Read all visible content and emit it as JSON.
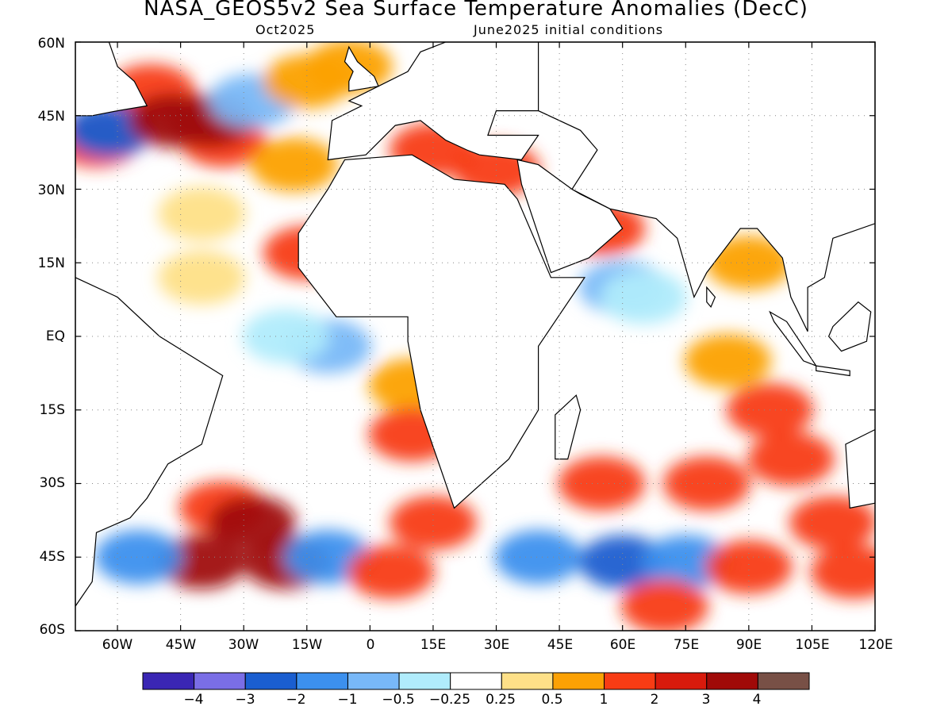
{
  "title": "NASA_GEOS5v2 Sea Surface Temperature Anomalies (DecC)",
  "subtitle_left": "Oct2025",
  "subtitle_right": "June2025 initial conditions",
  "axes": {
    "lat_ticks": [
      "60N",
      "45N",
      "30N",
      "15N",
      "EQ",
      "15S",
      "30S",
      "45S",
      "60S"
    ],
    "lon_ticks": [
      "60W",
      "45W",
      "30W",
      "15W",
      "0",
      "15E",
      "30E",
      "45E",
      "60E",
      "75E",
      "90E",
      "105E",
      "120E"
    ]
  },
  "colorbar": {
    "colors": [
      "#3a26b4",
      "#7a6ee6",
      "#1a5ed0",
      "#3c90ee",
      "#78b8f8",
      "#b0ecfc",
      "#ffffff",
      "#fee088",
      "#fca104",
      "#f83c14",
      "#d81a0c",
      "#a00a08",
      "#785046"
    ],
    "labels": [
      "−4",
      "−3",
      "−2",
      "−1",
      "−0.5",
      "−0.25",
      "0.25",
      "0.5",
      "1",
      "2",
      "3",
      "4"
    ]
  },
  "chart_data": {
    "type": "heatmap",
    "variable": "Sea Surface Temperature Anomalies (DecC)",
    "lon_range": [
      -70,
      120
    ],
    "lat_range": [
      -60,
      60
    ],
    "grid": true,
    "levels": [
      -4,
      -3,
      -2,
      -1,
      -0.5,
      -0.25,
      0.25,
      0.5,
      1,
      2,
      3,
      4
    ],
    "anomaly_regions": [
      {
        "lon": -52,
        "lat": 50,
        "value": 1.5
      },
      {
        "lon": -35,
        "lat": 40,
        "value": 1.5
      },
      {
        "lon": -65,
        "lat": 40,
        "value": 1.5
      },
      {
        "lon": -62,
        "lat": 42,
        "value": -2.5
      },
      {
        "lon": -47,
        "lat": 44,
        "value": 3.5
      },
      {
        "lon": -38,
        "lat": 44,
        "value": 3.5
      },
      {
        "lon": -28,
        "lat": 48,
        "value": -1
      },
      {
        "lon": -15,
        "lat": 52,
        "value": 0.7
      },
      {
        "lon": -5,
        "lat": 55,
        "value": 0.7
      },
      {
        "lon": -18,
        "lat": 35,
        "value": 0.6
      },
      {
        "lon": -40,
        "lat": 25,
        "value": 0.4
      },
      {
        "lon": -15,
        "lat": 17,
        "value": 1.5
      },
      {
        "lon": -40,
        "lat": 12,
        "value": 0.3
      },
      {
        "lon": -10,
        "lat": -2,
        "value": -1
      },
      {
        "lon": -20,
        "lat": 0,
        "value": -0.4
      },
      {
        "lon": 10,
        "lat": -10,
        "value": 0.7
      },
      {
        "lon": 10,
        "lat": -20,
        "value": 1.5
      },
      {
        "lon": 15,
        "lat": -38,
        "value": 1.8
      },
      {
        "lon": -35,
        "lat": -35,
        "value": 1.8
      },
      {
        "lon": -28,
        "lat": -38,
        "value": 3.5
      },
      {
        "lon": -40,
        "lat": -46,
        "value": 3.5
      },
      {
        "lon": -20,
        "lat": -46,
        "value": 3.5
      },
      {
        "lon": -55,
        "lat": -45,
        "value": -1.2
      },
      {
        "lon": -10,
        "lat": -45,
        "value": -1.2
      },
      {
        "lon": 5,
        "lat": -48,
        "value": 1.8
      },
      {
        "lon": 40,
        "lat": -45,
        "value": -1.3
      },
      {
        "lon": 60,
        "lat": -46,
        "value": -2.8
      },
      {
        "lon": 75,
        "lat": -46,
        "value": -1.5
      },
      {
        "lon": 90,
        "lat": -47,
        "value": 1.8
      },
      {
        "lon": 70,
        "lat": -55,
        "value": 1.5
      },
      {
        "lon": 55,
        "lat": -30,
        "value": 1.5
      },
      {
        "lon": 80,
        "lat": -30,
        "value": 1.8
      },
      {
        "lon": 95,
        "lat": -15,
        "value": 1.8
      },
      {
        "lon": 100,
        "lat": -25,
        "value": 1.8
      },
      {
        "lon": 85,
        "lat": -5,
        "value": 0.7
      },
      {
        "lon": 110,
        "lat": -38,
        "value": 1.5
      },
      {
        "lon": 115,
        "lat": -48,
        "value": 1.8
      },
      {
        "lon": 60,
        "lat": 10,
        "value": -0.6
      },
      {
        "lon": 65,
        "lat": 8,
        "value": -0.3
      },
      {
        "lon": 90,
        "lat": 15,
        "value": 0.7
      },
      {
        "lon": 15,
        "lat": 38,
        "value": 1.5
      },
      {
        "lon": 30,
        "lat": 34,
        "value": 1.5
      },
      {
        "lon": 55,
        "lat": 22,
        "value": 1.5
      }
    ]
  }
}
